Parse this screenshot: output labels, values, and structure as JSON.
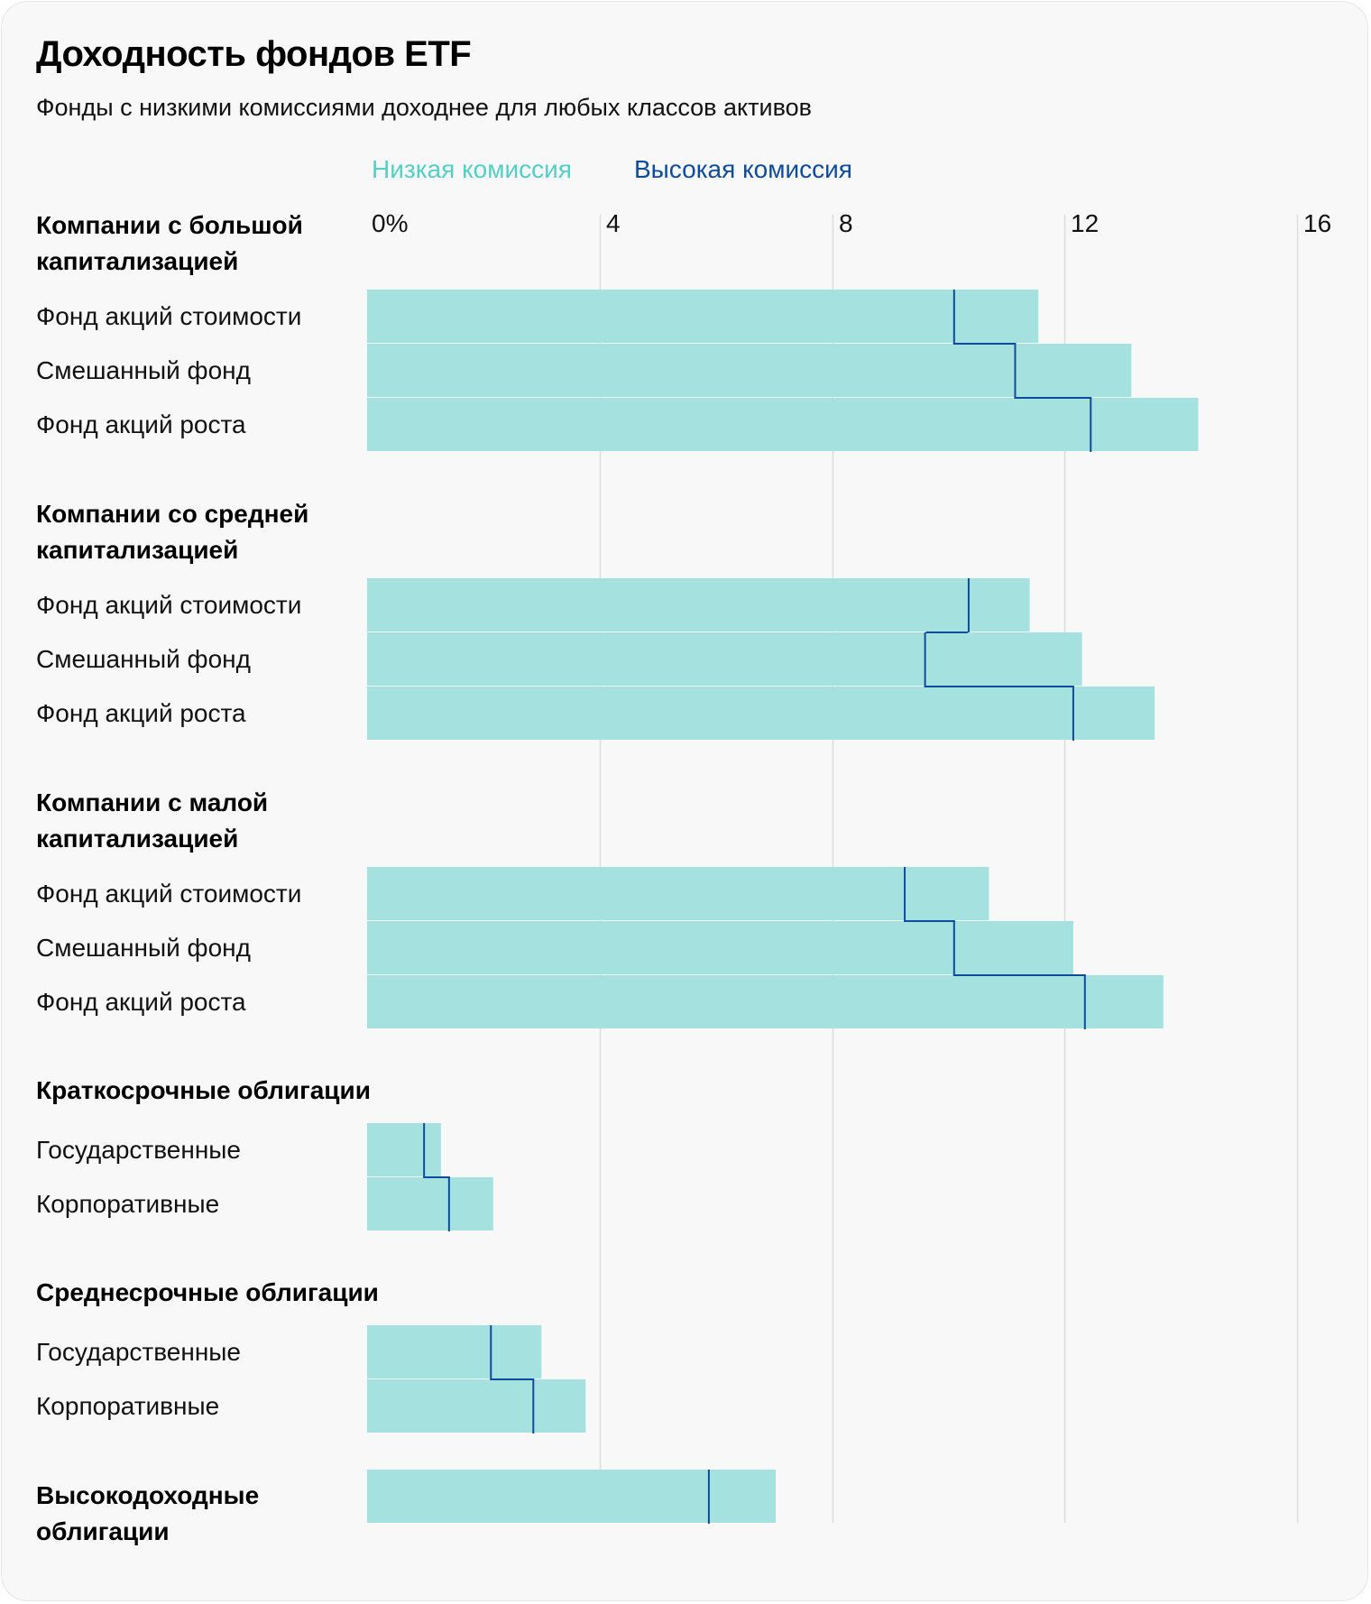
{
  "chart_data": {
    "type": "bar",
    "title": "Доходность фондов ETF",
    "subtitle": "Фонды с низкими комиссиями доходнее для любых классов активов",
    "xlabel": "",
    "ylabel": "",
    "xlim": [
      0,
      16
    ],
    "x_ticks": [
      0,
      4,
      8,
      12,
      16
    ],
    "x_tick_labels": [
      "0%",
      "4",
      "8",
      "12",
      "16"
    ],
    "grid": true,
    "orientation": "horizontal",
    "legend": {
      "placement": "top",
      "entries": [
        {
          "name": "Низкая комиссия",
          "color": "#a5e2df",
          "text_color": "#55cfc6",
          "mark": "bar"
        },
        {
          "name": "Высокая комиссия",
          "color": "#0e4b9c",
          "text_color": "#0e4b9c",
          "mark": "step-line"
        }
      ]
    },
    "groups": [
      {
        "name": "Компании с большой капитализацией",
        "rows": [
          {
            "label": "Фонд акций стоимости",
            "low_fee": 11.55,
            "high_fee": 10.1
          },
          {
            "label": "Смешанный фонд",
            "low_fee": 13.15,
            "high_fee": 11.15
          },
          {
            "label": "Фонд акций роста",
            "low_fee": 14.3,
            "high_fee": 12.45
          }
        ]
      },
      {
        "name": "Компании со средней капитализацией",
        "rows": [
          {
            "label": "Фонд акций стоимости",
            "low_fee": 11.4,
            "high_fee": 10.35
          },
          {
            "label": "Смешанный фонд",
            "low_fee": 12.3,
            "high_fee": 9.6
          },
          {
            "label": "Фонд акций роста",
            "low_fee": 13.55,
            "high_fee": 12.15
          }
        ]
      },
      {
        "name": "Компании с малой капитализацией",
        "rows": [
          {
            "label": "Фонд акций стоимости",
            "low_fee": 10.7,
            "high_fee": 9.25
          },
          {
            "label": "Смешанный фонд",
            "low_fee": 12.15,
            "high_fee": 10.1
          },
          {
            "label": "Фонд акций роста",
            "low_fee": 13.7,
            "high_fee": 12.35
          }
        ]
      },
      {
        "name": "Краткосрочные облигации",
        "rows": [
          {
            "label": "Государственные",
            "low_fee": 1.27,
            "high_fee": 0.98
          },
          {
            "label": "Корпоративные",
            "low_fee": 2.17,
            "high_fee": 1.41
          }
        ]
      },
      {
        "name": "Среднесрочные облигации",
        "rows": [
          {
            "label": "Государственные",
            "low_fee": 3.0,
            "high_fee": 2.13
          },
          {
            "label": "Корпоративные",
            "low_fee": 3.76,
            "high_fee": 2.86
          }
        ]
      },
      {
        "name": "Высокодоходные облигации",
        "rows": [
          {
            "label": "",
            "low_fee": 7.03,
            "high_fee": 5.88
          }
        ]
      }
    ]
  },
  "colors": {
    "low_fee_bar": "#a5e2df",
    "low_fee_text": "#55cfc6",
    "high_fee": "#0e4b9c",
    "grid": "#dcdcdc",
    "background": "#f8f8f8"
  }
}
